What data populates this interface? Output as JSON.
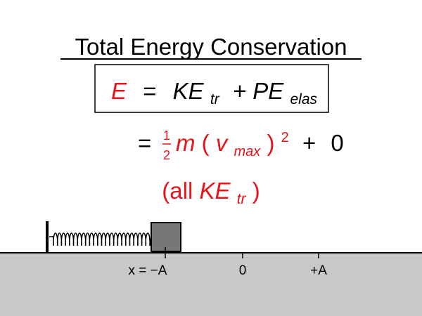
{
  "title": "Total Energy Conservation",
  "equation1": {
    "lhs": "E",
    "eq": "=",
    "ke": "KE",
    "ke_sub": "tr",
    "plus_pe": "+ PE",
    "pe_sub": "elas"
  },
  "equation2": {
    "eq": "=",
    "num": "1",
    "den": "2",
    "m": "m",
    "open": "(",
    "v": "v",
    "v_sub": "max",
    "close": ")",
    "exp": "2",
    "plus": "+",
    "zero": "0"
  },
  "note": {
    "open": "(all ",
    "ke": "KE",
    "ke_sub": "tr",
    "close": ")"
  },
  "axis_labels": [
    "x = −A",
    "0",
    "+A"
  ]
}
